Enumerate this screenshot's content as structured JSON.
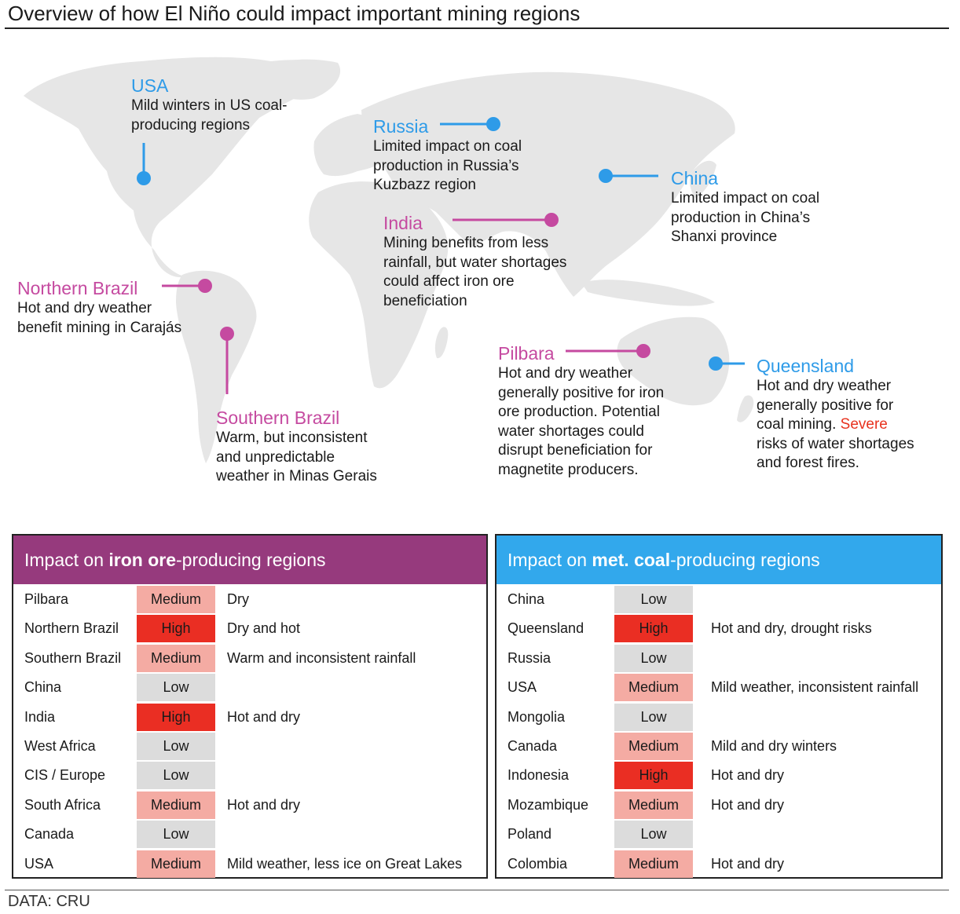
{
  "title": "Overview of how El Niño could impact important mining regions",
  "colors": {
    "coal_blue": "#2e9be8",
    "iron_pink": "#c54aa0",
    "iron_header": "#963a7d",
    "coal_header": "#32a8ec",
    "high": "#ea2e23",
    "medium": "#f4aba3",
    "low": "#dcdcdc",
    "warning_text": "#e8321e",
    "land": "#e6e6e6"
  },
  "map": {
    "callouts": [
      {
        "id": "usa",
        "heading": "USA",
        "lines": [
          "Mild winters in US coal-",
          "producing regions"
        ],
        "color": "blue"
      },
      {
        "id": "russia",
        "heading": "Russia",
        "lines": [
          "Limited impact on coal",
          "production in Russia’s",
          "Kuzbazz region"
        ],
        "color": "blue"
      },
      {
        "id": "china",
        "heading": "China",
        "lines": [
          "Limited impact on coal",
          "production in China’s",
          "Shanxi province"
        ],
        "color": "blue"
      },
      {
        "id": "india",
        "heading": "India",
        "lines": [
          "Mining benefits from less",
          "rainfall, but water shortages",
          "could affect iron ore",
          "beneficiation"
        ],
        "color": "pink"
      },
      {
        "id": "northern-brazil",
        "heading": "Northern Brazil",
        "lines": [
          "Hot and dry weather",
          "benefit mining in Carajás"
        ],
        "color": "pink"
      },
      {
        "id": "southern-brazil",
        "heading": "Southern Brazil",
        "lines": [
          "Warm, but inconsistent",
          "and unpredictable",
          "weather in Minas Gerais"
        ],
        "color": "pink"
      },
      {
        "id": "pilbara",
        "heading": "Pilbara",
        "lines": [
          "Hot and dry weather",
          "generally positive for iron",
          "ore production. Potential",
          "water shortages could",
          "disrupt beneficiation for",
          "magnetite producers."
        ],
        "color": "pink"
      },
      {
        "id": "queensland",
        "heading": "Queensland",
        "lines": [
          "Hot and dry weather",
          "generally positive for",
          "coal mining."
        ],
        "warning": [
          "Severe",
          "risks of water shortages",
          "and forest fires."
        ],
        "color": "blue"
      }
    ]
  },
  "iron_panel": {
    "header_pre": "Impact on ",
    "header_bold": "iron ore",
    "header_post": "-producing regions",
    "rows": [
      {
        "region": "Pilbara",
        "level": "Medium",
        "note": "Dry"
      },
      {
        "region": "Northern Brazil",
        "level": "High",
        "note": "Dry and hot"
      },
      {
        "region": "Southern Brazil",
        "level": "Medium",
        "note": "Warm and inconsistent rainfall"
      },
      {
        "region": "China",
        "level": "Low",
        "note": ""
      },
      {
        "region": "India",
        "level": "High",
        "note": "Hot and dry"
      },
      {
        "region": "West Africa",
        "level": "Low",
        "note": ""
      },
      {
        "region": "CIS / Europe",
        "level": "Low",
        "note": ""
      },
      {
        "region": "South Africa",
        "level": "Medium",
        "note": "Hot and dry"
      },
      {
        "region": "Canada",
        "level": "Low",
        "note": ""
      },
      {
        "region": "USA",
        "level": "Medium",
        "note": "Mild weather, less ice on Great Lakes"
      }
    ]
  },
  "coal_panel": {
    "header_pre": "Impact on ",
    "header_bold": "met. coal",
    "header_post": "-producing regions",
    "rows": [
      {
        "region": "China",
        "level": "Low",
        "note": ""
      },
      {
        "region": "Queensland",
        "level": "High",
        "note": "Hot and dry, drought risks"
      },
      {
        "region": "Russia",
        "level": "Low",
        "note": ""
      },
      {
        "region": "USA",
        "level": "Medium",
        "note": "Mild weather, inconsistent rainfall"
      },
      {
        "region": "Mongolia",
        "level": "Low",
        "note": ""
      },
      {
        "region": "Canada",
        "level": "Medium",
        "note": "Mild and dry winters"
      },
      {
        "region": "Indonesia",
        "level": "High",
        "note": "Hot and dry"
      },
      {
        "region": "Mozambique",
        "level": "Medium",
        "note": "Hot and dry"
      },
      {
        "region": "Poland",
        "level": "Low",
        "note": ""
      },
      {
        "region": "Colombia",
        "level": "Medium",
        "note": "Hot and dry"
      }
    ]
  },
  "source": "DATA: CRU"
}
